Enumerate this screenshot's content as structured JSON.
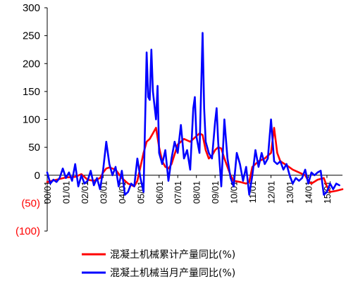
{
  "chart_data": {
    "type": "line",
    "title": "",
    "xlabel": "",
    "ylabel": "",
    "ylim": [
      -100,
      300
    ],
    "yticks": [
      {
        "value": 300,
        "label": "300",
        "color": "#000000"
      },
      {
        "value": 250,
        "label": "250",
        "color": "#000000"
      },
      {
        "value": 200,
        "label": "200",
        "color": "#000000"
      },
      {
        "value": 150,
        "label": "150",
        "color": "#000000"
      },
      {
        "value": 100,
        "label": "100",
        "color": "#000000"
      },
      {
        "value": 50,
        "label": "50",
        "color": "#000000"
      },
      {
        "value": 0,
        "label": "0",
        "color": "#000000"
      },
      {
        "value": -50,
        "label": "(50)",
        "color": "#ff0000"
      },
      {
        "value": -100,
        "label": "(100)",
        "color": "#ff0000"
      }
    ],
    "xticks": [
      {
        "t": 0,
        "label": "00/01"
      },
      {
        "t": 12,
        "label": "01/01"
      },
      {
        "t": 24,
        "label": "02/01"
      },
      {
        "t": 36,
        "label": "03/01"
      },
      {
        "t": 48,
        "label": "04/01"
      },
      {
        "t": 60,
        "label": "05/01"
      },
      {
        "t": 72,
        "label": "06/01"
      },
      {
        "t": 84,
        "label": "07/01"
      },
      {
        "t": 96,
        "label": "08/01"
      },
      {
        "t": 108,
        "label": "09/01"
      },
      {
        "t": 120,
        "label": "10/01"
      },
      {
        "t": 132,
        "label": "11/01"
      },
      {
        "t": 144,
        "label": "12/01"
      },
      {
        "t": 156,
        "label": "13/01"
      },
      {
        "t": 168,
        "label": "14/01"
      },
      {
        "t": 180,
        "label": "15/01"
      }
    ],
    "x_range": [
      0,
      190
    ],
    "series": [
      {
        "name": "混凝土机械累计产量同比(%)",
        "color": "#ff0000",
        "points": [
          [
            0,
            -12
          ],
          [
            6,
            -8
          ],
          [
            12,
            -4
          ],
          [
            18,
            -3
          ],
          [
            22,
            2
          ],
          [
            26,
            -8
          ],
          [
            30,
            -10
          ],
          [
            34,
            -5
          ],
          [
            36,
            5
          ],
          [
            38,
            12
          ],
          [
            40,
            14
          ],
          [
            44,
            10
          ],
          [
            48,
            -5
          ],
          [
            52,
            -15
          ],
          [
            56,
            -20
          ],
          [
            58,
            -10
          ],
          [
            60,
            15
          ],
          [
            62,
            40
          ],
          [
            64,
            60
          ],
          [
            66,
            65
          ],
          [
            68,
            75
          ],
          [
            70,
            85
          ],
          [
            72,
            50
          ],
          [
            74,
            25
          ],
          [
            76,
            15
          ],
          [
            78,
            12
          ],
          [
            80,
            20
          ],
          [
            84,
            55
          ],
          [
            88,
            65
          ],
          [
            92,
            60
          ],
          [
            96,
            70
          ],
          [
            98,
            75
          ],
          [
            100,
            72
          ],
          [
            102,
            45
          ],
          [
            104,
            30
          ],
          [
            106,
            35
          ],
          [
            108,
            45
          ],
          [
            110,
            50
          ],
          [
            112,
            48
          ],
          [
            114,
            30
          ],
          [
            116,
            15
          ],
          [
            118,
            0
          ],
          [
            120,
            -10
          ],
          [
            124,
            -12
          ],
          [
            128,
            -15
          ],
          [
            130,
            -12
          ],
          [
            132,
            15
          ],
          [
            136,
            25
          ],
          [
            140,
            30
          ],
          [
            142,
            35
          ],
          [
            144,
            40
          ],
          [
            146,
            85
          ],
          [
            148,
            40
          ],
          [
            150,
            25
          ],
          [
            154,
            18
          ],
          [
            158,
            10
          ],
          [
            162,
            5
          ],
          [
            166,
            0
          ],
          [
            168,
            -10
          ],
          [
            170,
            -15
          ],
          [
            174,
            -8
          ],
          [
            178,
            -5
          ],
          [
            180,
            -20
          ],
          [
            182,
            -30
          ],
          [
            186,
            -28
          ],
          [
            190,
            -25
          ]
        ]
      },
      {
        "name": "混凝土机械当月产量同比(%)",
        "color": "#0000ff",
        "points": [
          [
            0,
            5
          ],
          [
            2,
            -15
          ],
          [
            4,
            -8
          ],
          [
            6,
            -12
          ],
          [
            8,
            -5
          ],
          [
            10,
            12
          ],
          [
            12,
            -5
          ],
          [
            14,
            5
          ],
          [
            16,
            -10
          ],
          [
            18,
            20
          ],
          [
            20,
            -20
          ],
          [
            22,
            0
          ],
          [
            24,
            -15
          ],
          [
            26,
            -10
          ],
          [
            28,
            8
          ],
          [
            30,
            -18
          ],
          [
            32,
            -5
          ],
          [
            34,
            -25
          ],
          [
            36,
            10
          ],
          [
            38,
            60
          ],
          [
            40,
            20
          ],
          [
            42,
            0
          ],
          [
            44,
            15
          ],
          [
            46,
            -20
          ],
          [
            48,
            8
          ],
          [
            50,
            -35
          ],
          [
            52,
            -30
          ],
          [
            54,
            -15
          ],
          [
            56,
            -20
          ],
          [
            58,
            30
          ],
          [
            60,
            -5
          ],
          [
            62,
            -30
          ],
          [
            64,
            220
          ],
          [
            65,
            140
          ],
          [
            66,
            135
          ],
          [
            67,
            225
          ],
          [
            68,
            150
          ],
          [
            70,
            100
          ],
          [
            71,
            160
          ],
          [
            72,
            40
          ],
          [
            74,
            20
          ],
          [
            76,
            45
          ],
          [
            78,
            -10
          ],
          [
            80,
            30
          ],
          [
            82,
            60
          ],
          [
            84,
            40
          ],
          [
            86,
            90
          ],
          [
            88,
            30
          ],
          [
            90,
            45
          ],
          [
            92,
            10
          ],
          [
            94,
            120
          ],
          [
            95,
            140
          ],
          [
            96,
            70
          ],
          [
            98,
            40
          ],
          [
            100,
            255
          ],
          [
            101,
            120
          ],
          [
            102,
            60
          ],
          [
            104,
            40
          ],
          [
            106,
            30
          ],
          [
            108,
            95
          ],
          [
            109,
            120
          ],
          [
            110,
            60
          ],
          [
            112,
            -20
          ],
          [
            114,
            100
          ],
          [
            116,
            30
          ],
          [
            118,
            -5
          ],
          [
            120,
            -20
          ],
          [
            122,
            40
          ],
          [
            124,
            20
          ],
          [
            126,
            -10
          ],
          [
            128,
            15
          ],
          [
            130,
            -35
          ],
          [
            132,
            0
          ],
          [
            134,
            45
          ],
          [
            136,
            15
          ],
          [
            138,
            40
          ],
          [
            140,
            20
          ],
          [
            142,
            30
          ],
          [
            144,
            100
          ],
          [
            146,
            25
          ],
          [
            148,
            20
          ],
          [
            150,
            25
          ],
          [
            152,
            10
          ],
          [
            154,
            20
          ],
          [
            156,
            0
          ],
          [
            158,
            -15
          ],
          [
            160,
            -5
          ],
          [
            162,
            -10
          ],
          [
            164,
            -5
          ],
          [
            166,
            10
          ],
          [
            168,
            -15
          ],
          [
            170,
            5
          ],
          [
            172,
            0
          ],
          [
            174,
            5
          ],
          [
            176,
            8
          ],
          [
            178,
            -35
          ],
          [
            180,
            -30
          ],
          [
            182,
            -15
          ],
          [
            184,
            -25
          ],
          [
            186,
            -15
          ],
          [
            188,
            -18
          ]
        ]
      }
    ],
    "legend": "bottom"
  }
}
